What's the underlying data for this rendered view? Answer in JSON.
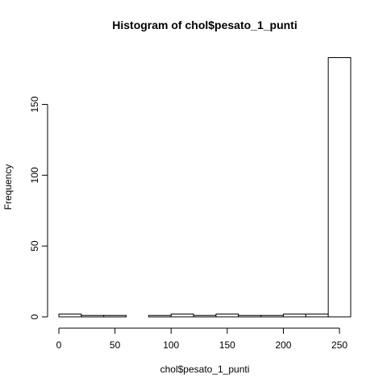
{
  "chart_data": {
    "type": "bar",
    "title": "Histogram of chol$pesato_1_punti",
    "xlabel": "chol$pesato_1_punti",
    "ylabel": "Frequency",
    "bins": [
      {
        "start": 0,
        "end": 20,
        "count": 2
      },
      {
        "start": 20,
        "end": 40,
        "count": 1
      },
      {
        "start": 40,
        "end": 60,
        "count": 1
      },
      {
        "start": 60,
        "end": 80,
        "count": 0
      },
      {
        "start": 80,
        "end": 100,
        "count": 1
      },
      {
        "start": 100,
        "end": 120,
        "count": 2
      },
      {
        "start": 120,
        "end": 140,
        "count": 1
      },
      {
        "start": 140,
        "end": 160,
        "count": 2
      },
      {
        "start": 160,
        "end": 180,
        "count": 1
      },
      {
        "start": 180,
        "end": 200,
        "count": 1
      },
      {
        "start": 200,
        "end": 220,
        "count": 2
      },
      {
        "start": 220,
        "end": 240,
        "count": 2
      },
      {
        "start": 240,
        "end": 260,
        "count": 183
      }
    ],
    "xlim": [
      0,
      260
    ],
    "ylim": [
      0,
      183
    ],
    "xticks": [
      0,
      50,
      100,
      150,
      200,
      250
    ],
    "yticks": [
      0,
      50,
      100,
      150
    ],
    "grid": false
  }
}
